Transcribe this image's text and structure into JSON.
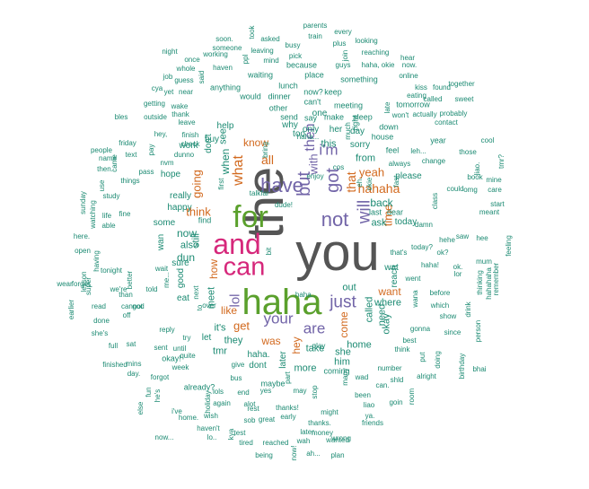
{
  "palette": {
    "grey": "#555555",
    "green": "#5aa02c",
    "magenta": "#d6287b",
    "purple": "#7265a8",
    "orange": "#d2691e",
    "teal": "#1b8a72"
  },
  "words": [
    {
      "text": "the",
      "color": "grey"
    },
    {
      "text": "you",
      "color": "grey"
    },
    {
      "text": "haha",
      "color": "green"
    },
    {
      "text": "for",
      "color": "green"
    },
    {
      "text": "and",
      "color": "magenta"
    },
    {
      "text": "can",
      "color": "magenta"
    },
    {
      "text": "not",
      "color": "purple"
    },
    {
      "text": "have",
      "color": "purple"
    },
    {
      "text": "but",
      "color": "purple"
    },
    {
      "text": "then",
      "color": "purple"
    },
    {
      "text": "got",
      "color": "purple"
    },
    {
      "text": "with",
      "color": "purple"
    },
    {
      "text": "i'm",
      "color": "purple"
    },
    {
      "text": "just",
      "color": "purple"
    },
    {
      "text": "your",
      "color": "purple"
    },
    {
      "text": "are",
      "color": "purple"
    },
    {
      "text": "will",
      "color": "purple"
    },
    {
      "text": "lol",
      "color": "purple"
    },
    {
      "text": "what",
      "color": "orange"
    },
    {
      "text": "hahaha",
      "color": "orange"
    },
    {
      "text": "time",
      "color": "orange"
    },
    {
      "text": "yeah",
      "color": "orange"
    },
    {
      "text": "that",
      "color": "orange"
    },
    {
      "text": "all",
      "color": "orange"
    },
    {
      "text": "going",
      "color": "orange"
    },
    {
      "text": "think",
      "color": "orange"
    },
    {
      "text": "get",
      "color": "orange"
    },
    {
      "text": "like",
      "color": "orange"
    },
    {
      "text": "know",
      "color": "orange"
    },
    {
      "text": "want",
      "color": "orange"
    },
    {
      "text": "hey",
      "color": "orange"
    },
    {
      "text": "come",
      "color": "orange"
    },
    {
      "text": "was",
      "color": "orange"
    },
    {
      "text": "how",
      "color": "orange"
    },
    {
      "text": "when",
      "color": "teal"
    },
    {
      "text": "see",
      "color": "teal"
    },
    {
      "text": "now",
      "color": "teal"
    },
    {
      "text": "dun",
      "color": "teal"
    },
    {
      "text": "still",
      "color": "teal"
    },
    {
      "text": "meet",
      "color": "teal"
    },
    {
      "text": "back",
      "color": "teal"
    },
    {
      "text": "from",
      "color": "teal"
    },
    {
      "text": "this",
      "color": "teal"
    },
    {
      "text": "they",
      "color": "teal"
    },
    {
      "text": "it's",
      "color": "teal"
    },
    {
      "text": "home",
      "color": "teal"
    },
    {
      "text": "where",
      "color": "teal"
    },
    {
      "text": "okay",
      "color": "teal"
    },
    {
      "text": "ask",
      "color": "teal"
    },
    {
      "text": "today",
      "color": "teal"
    },
    {
      "text": "sorry",
      "color": "teal"
    },
    {
      "text": "out",
      "color": "teal"
    },
    {
      "text": "called",
      "color": "teal"
    },
    {
      "text": "need",
      "color": "teal"
    },
    {
      "text": "take",
      "color": "teal"
    },
    {
      "text": "him",
      "color": "teal"
    },
    {
      "text": "she",
      "color": "teal"
    },
    {
      "text": "more",
      "color": "teal"
    },
    {
      "text": "later",
      "color": "teal"
    },
    {
      "text": "tmr",
      "color": "teal"
    },
    {
      "text": "also",
      "color": "teal"
    },
    {
      "text": "wan",
      "color": "teal"
    },
    {
      "text": "good",
      "color": "teal"
    },
    {
      "text": "don't",
      "color": "teal"
    },
    {
      "text": "some",
      "color": "teal"
    },
    {
      "text": "really",
      "color": "teal"
    },
    {
      "text": "buy",
      "color": "teal"
    },
    {
      "text": "help",
      "color": "teal"
    },
    {
      "text": "only",
      "color": "teal"
    },
    {
      "text": "why",
      "color": "teal"
    },
    {
      "text": "too",
      "color": "teal"
    },
    {
      "text": "her",
      "color": "teal"
    },
    {
      "text": "day",
      "color": "teal"
    },
    {
      "text": "reach",
      "color": "teal"
    },
    {
      "text": "one",
      "color": "teal"
    },
    {
      "text": "haha.",
      "color": "teal"
    },
    {
      "text": "let",
      "color": "teal"
    },
    {
      "text": "sure",
      "color": "teal"
    },
    {
      "text": "happy",
      "color": "teal"
    },
    {
      "text": "work",
      "color": "teal"
    },
    {
      "text": "please",
      "color": "teal"
    },
    {
      "text": "tomorrow",
      "color": "teal"
    },
    {
      "text": "hope",
      "color": "teal"
    },
    {
      "text": "already?",
      "color": "teal"
    },
    {
      "text": "dont",
      "color": "teal"
    },
    {
      "text": "wat",
      "color": "teal"
    },
    {
      "text": "eat",
      "color": "teal"
    },
    {
      "text": "last",
      "color": "teal"
    },
    {
      "text": "dear",
      "color": "teal"
    },
    {
      "text": "okay!",
      "color": "teal"
    },
    {
      "text": "find",
      "color": "teal"
    },
    {
      "text": "maybe",
      "color": "teal"
    },
    {
      "text": "coming",
      "color": "teal"
    },
    {
      "text": "lunch",
      "color": "teal"
    },
    {
      "text": "send",
      "color": "teal"
    },
    {
      "text": "say",
      "color": "teal"
    },
    {
      "text": "make",
      "color": "teal"
    },
    {
      "text": "sleep",
      "color": "teal"
    },
    {
      "text": "house",
      "color": "teal"
    },
    {
      "text": "year",
      "color": "teal"
    },
    {
      "text": "down",
      "color": "teal"
    },
    {
      "text": "feel",
      "color": "teal"
    },
    {
      "text": "right",
      "color": "teal"
    },
    {
      "text": "something",
      "color": "teal"
    },
    {
      "text": "meeting",
      "color": "teal"
    },
    {
      "text": "keep",
      "color": "teal"
    },
    {
      "text": "place",
      "color": "teal"
    },
    {
      "text": "because",
      "color": "teal"
    },
    {
      "text": "waiting",
      "color": "teal"
    },
    {
      "text": "dinner",
      "color": "teal"
    },
    {
      "text": "anything",
      "color": "teal"
    },
    {
      "text": "would",
      "color": "teal"
    },
    {
      "text": "other",
      "color": "teal"
    },
    {
      "text": "can't",
      "color": "teal"
    },
    {
      "text": "now?",
      "color": "teal"
    },
    {
      "text": "soon.",
      "color": "teal"
    },
    {
      "text": "asked",
      "color": "teal"
    },
    {
      "text": "busy",
      "color": "teal"
    },
    {
      "text": "train",
      "color": "teal"
    },
    {
      "text": "parents",
      "color": "teal"
    },
    {
      "text": "took",
      "color": "teal"
    },
    {
      "text": "every",
      "color": "teal"
    },
    {
      "text": "plus",
      "color": "teal"
    },
    {
      "text": "looking",
      "color": "teal"
    },
    {
      "text": "reaching",
      "color": "teal"
    },
    {
      "text": "hear",
      "color": "teal"
    },
    {
      "text": "once",
      "color": "teal"
    },
    {
      "text": "working",
      "color": "teal"
    },
    {
      "text": "leaving",
      "color": "teal"
    },
    {
      "text": "someone",
      "color": "teal"
    },
    {
      "text": "whole",
      "color": "teal"
    },
    {
      "text": "haven",
      "color": "teal"
    },
    {
      "text": "mind",
      "color": "teal"
    },
    {
      "text": "pick",
      "color": "teal"
    },
    {
      "text": "join",
      "color": "teal"
    },
    {
      "text": "guys",
      "color": "teal"
    },
    {
      "text": "haha, okie",
      "color": "teal"
    },
    {
      "text": "now.",
      "color": "teal"
    },
    {
      "text": "online",
      "color": "teal"
    },
    {
      "text": "eating",
      "color": "teal"
    },
    {
      "text": "kiss",
      "color": "teal"
    },
    {
      "text": "found",
      "color": "teal"
    },
    {
      "text": "together",
      "color": "teal"
    },
    {
      "text": "called",
      "color": "teal"
    },
    {
      "text": "sweet",
      "color": "teal"
    },
    {
      "text": "job",
      "color": "teal"
    },
    {
      "text": "guess",
      "color": "teal"
    },
    {
      "text": "cya",
      "color": "teal"
    },
    {
      "text": "yet",
      "color": "teal"
    },
    {
      "text": "near",
      "color": "teal"
    },
    {
      "text": "getting",
      "color": "teal"
    },
    {
      "text": "wake",
      "color": "teal"
    },
    {
      "text": "outside",
      "color": "teal"
    },
    {
      "text": "thank",
      "color": "teal"
    },
    {
      "text": "leave",
      "color": "teal"
    },
    {
      "text": "bles",
      "color": "teal"
    },
    {
      "text": "finish",
      "color": "teal"
    },
    {
      "text": "check",
      "color": "teal"
    },
    {
      "text": "dunno",
      "color": "teal"
    },
    {
      "text": "nvm",
      "color": "teal"
    },
    {
      "text": "friday",
      "color": "teal"
    },
    {
      "text": "text",
      "color": "teal"
    },
    {
      "text": "name",
      "color": "teal"
    },
    {
      "text": "things",
      "color": "teal"
    },
    {
      "text": "pass",
      "color": "teal"
    },
    {
      "text": "then.",
      "color": "teal"
    },
    {
      "text": "study",
      "color": "teal"
    },
    {
      "text": "life",
      "color": "teal"
    },
    {
      "text": "able",
      "color": "teal"
    },
    {
      "text": "sunday",
      "color": "teal"
    },
    {
      "text": "fine",
      "color": "teal"
    },
    {
      "text": "here.",
      "color": "teal"
    },
    {
      "text": "open",
      "color": "teal"
    },
    {
      "text": "forget",
      "color": "teal"
    },
    {
      "text": "super",
      "color": "teal"
    },
    {
      "text": "tonight",
      "color": "teal"
    },
    {
      "text": "better",
      "color": "teal"
    },
    {
      "text": "wait",
      "color": "teal"
    },
    {
      "text": "told",
      "color": "teal"
    },
    {
      "text": "than",
      "color": "teal"
    },
    {
      "text": "cannot",
      "color": "teal"
    },
    {
      "text": "off",
      "color": "teal"
    },
    {
      "text": "god",
      "color": "teal"
    },
    {
      "text": "read",
      "color": "teal"
    },
    {
      "text": "done",
      "color": "teal"
    },
    {
      "text": "wear",
      "color": "teal"
    },
    {
      "text": "full",
      "color": "teal"
    },
    {
      "text": "sat",
      "color": "teal"
    },
    {
      "text": "sent",
      "color": "teal"
    },
    {
      "text": "until",
      "color": "teal"
    },
    {
      "text": "finished",
      "color": "teal"
    },
    {
      "text": "mins",
      "color": "teal"
    },
    {
      "text": "day.",
      "color": "teal"
    },
    {
      "text": "forgot",
      "color": "teal"
    },
    {
      "text": "week",
      "color": "teal"
    },
    {
      "text": "quite",
      "color": "teal"
    },
    {
      "text": "reply",
      "color": "teal"
    },
    {
      "text": "try",
      "color": "teal"
    },
    {
      "text": "over",
      "color": "teal"
    },
    {
      "text": "haha!",
      "color": "teal"
    },
    {
      "text": "before",
      "color": "teal"
    },
    {
      "text": "which",
      "color": "teal"
    },
    {
      "text": "show",
      "color": "teal"
    },
    {
      "text": "gonna",
      "color": "teal"
    },
    {
      "text": "since",
      "color": "teal"
    },
    {
      "text": "drink",
      "color": "teal"
    },
    {
      "text": "person",
      "color": "teal"
    },
    {
      "text": "birthday",
      "color": "teal"
    },
    {
      "text": "alright",
      "color": "teal"
    },
    {
      "text": "number",
      "color": "teal"
    },
    {
      "text": "been",
      "color": "teal"
    },
    {
      "text": "many",
      "color": "teal"
    },
    {
      "text": "money",
      "color": "teal"
    },
    {
      "text": "wanted",
      "color": "teal"
    },
    {
      "text": "wrong",
      "color": "teal"
    },
    {
      "text": "plan",
      "color": "teal"
    },
    {
      "text": "being",
      "color": "teal"
    },
    {
      "text": "reached",
      "color": "teal"
    },
    {
      "text": "tired",
      "color": "teal"
    },
    {
      "text": "great",
      "color": "teal"
    },
    {
      "text": "early",
      "color": "teal"
    },
    {
      "text": "thanks.",
      "color": "teal"
    },
    {
      "text": "might",
      "color": "teal"
    },
    {
      "text": "friends",
      "color": "teal"
    },
    {
      "text": "wish",
      "color": "teal"
    },
    {
      "text": "home.",
      "color": "teal"
    },
    {
      "text": "now...",
      "color": "teal"
    },
    {
      "text": "lo..",
      "color": "teal"
    },
    {
      "text": "haven't",
      "color": "teal"
    },
    {
      "text": "again",
      "color": "teal"
    },
    {
      "text": "alot",
      "color": "teal"
    },
    {
      "text": "rest",
      "color": "teal"
    },
    {
      "text": "thanks!",
      "color": "teal"
    },
    {
      "text": "bus",
      "color": "teal"
    },
    {
      "text": "lols",
      "color": "teal"
    },
    {
      "text": "end",
      "color": "teal"
    },
    {
      "text": "give",
      "color": "teal"
    },
    {
      "text": "yes",
      "color": "teal"
    },
    {
      "text": "test",
      "color": "teal"
    },
    {
      "text": "sob",
      "color": "teal"
    },
    {
      "text": "wah",
      "color": "teal"
    },
    {
      "text": "later.",
      "color": "teal"
    },
    {
      "text": "ah...",
      "color": "teal"
    },
    {
      "text": "ya.",
      "color": "teal"
    },
    {
      "text": "now!",
      "color": "teal"
    },
    {
      "text": "kya",
      "color": "teal"
    },
    {
      "text": "stop",
      "color": "teal"
    },
    {
      "text": "may",
      "color": "teal"
    },
    {
      "text": "bhai",
      "color": "teal"
    },
    {
      "text": "ok?",
      "color": "teal"
    },
    {
      "text": "lor",
      "color": "teal"
    },
    {
      "text": "ok.",
      "color": "teal"
    },
    {
      "text": "mum",
      "color": "teal"
    },
    {
      "text": "saw",
      "color": "teal"
    },
    {
      "text": "hee",
      "color": "teal"
    },
    {
      "text": "hehe",
      "color": "teal"
    },
    {
      "text": "meant",
      "color": "teal"
    },
    {
      "text": "start",
      "color": "teal"
    },
    {
      "text": "feeling",
      "color": "teal"
    },
    {
      "text": "remember",
      "color": "teal"
    },
    {
      "text": "hahahaha",
      "color": "teal"
    },
    {
      "text": "thinking",
      "color": "teal"
    },
    {
      "text": "cool",
      "color": "teal"
    },
    {
      "text": "those",
      "color": "teal"
    },
    {
      "text": "mine",
      "color": "teal"
    },
    {
      "text": "liao.",
      "color": "teal"
    },
    {
      "text": "tmr?",
      "color": "teal"
    },
    {
      "text": "book",
      "color": "teal"
    },
    {
      "text": "contact",
      "color": "teal"
    },
    {
      "text": "actually",
      "color": "teal"
    },
    {
      "text": "probably",
      "color": "teal"
    },
    {
      "text": "won't",
      "color": "teal"
    },
    {
      "text": "leh...",
      "color": "teal"
    },
    {
      "text": "change",
      "color": "teal"
    },
    {
      "text": "always",
      "color": "teal"
    },
    {
      "text": "could",
      "color": "teal"
    },
    {
      "text": "omg",
      "color": "teal"
    },
    {
      "text": "care",
      "color": "teal"
    },
    {
      "text": "today?",
      "color": "teal"
    },
    {
      "text": "wana",
      "color": "teal"
    },
    {
      "text": "class",
      "color": "teal"
    },
    {
      "text": "best",
      "color": "teal"
    },
    {
      "text": "think",
      "color": "teal"
    },
    {
      "text": "doing",
      "color": "teal"
    },
    {
      "text": "put",
      "color": "teal"
    },
    {
      "text": "shld",
      "color": "teal"
    },
    {
      "text": "room",
      "color": "teal"
    },
    {
      "text": "goin",
      "color": "teal"
    },
    {
      "text": "liao",
      "color": "teal"
    },
    {
      "text": "wad",
      "color": "teal"
    },
    {
      "text": "can.",
      "color": "teal"
    },
    {
      "text": "went",
      "color": "teal"
    },
    {
      "text": "damn",
      "color": "teal"
    },
    {
      "text": "that's",
      "color": "teal"
    },
    {
      "text": "play",
      "color": "teal"
    },
    {
      "text": "talk",
      "color": "teal"
    },
    {
      "text": "far",
      "color": "teal"
    },
    {
      "text": "bit",
      "color": "teal"
    },
    {
      "text": "cos",
      "color": "teal"
    },
    {
      "text": "much",
      "color": "teal"
    },
    {
      "text": "late",
      "color": "teal"
    },
    {
      "text": "said",
      "color": "teal"
    },
    {
      "text": "night",
      "color": "teal"
    },
    {
      "text": "ppl",
      "color": "teal"
    },
    {
      "text": "hey,",
      "color": "teal"
    },
    {
      "text": "pay",
      "color": "teal"
    },
    {
      "text": "people",
      "color": "teal"
    },
    {
      "text": "came",
      "color": "teal"
    },
    {
      "text": "use",
      "color": "teal"
    },
    {
      "text": "watching",
      "color": "teal"
    },
    {
      "text": "having",
      "color": "teal"
    },
    {
      "text": "earlier",
      "color": "teal"
    },
    {
      "text": "she's",
      "color": "teal"
    },
    {
      "text": "lesson",
      "color": "teal"
    },
    {
      "text": "we're",
      "color": "teal"
    },
    {
      "text": "i've",
      "color": "teal"
    },
    {
      "text": "else",
      "color": "teal"
    },
    {
      "text": "fun",
      "color": "teal"
    },
    {
      "text": "he's",
      "color": "teal"
    },
    {
      "text": "holiday",
      "color": "teal"
    },
    {
      "text": "part",
      "color": "teal"
    },
    {
      "text": "dude!",
      "color": "teal"
    },
    {
      "text": "haha..",
      "color": "teal"
    },
    {
      "text": "haha...",
      "color": "teal"
    },
    {
      "text": "enjoy",
      "color": "teal"
    },
    {
      "text": "next",
      "color": "teal"
    },
    {
      "text": "to",
      "color": "teal"
    },
    {
      "text": "me...",
      "color": "teal"
    },
    {
      "text": "eh.",
      "color": "teal"
    },
    {
      "text": "okie",
      "color": "teal"
    },
    {
      "text": "first",
      "color": "teal"
    },
    {
      "text": "bring",
      "color": "teal"
    },
    {
      "text": "fast",
      "color": "teal"
    },
    {
      "text": "wont",
      "color": "teal"
    },
    {
      "text": "won't",
      "color": "teal"
    },
    {
      "text": "its",
      "color": "teal"
    },
    {
      "text": "hmm",
      "color": "teal"
    },
    {
      "text": "ready",
      "color": "teal"
    }
  ]
}
